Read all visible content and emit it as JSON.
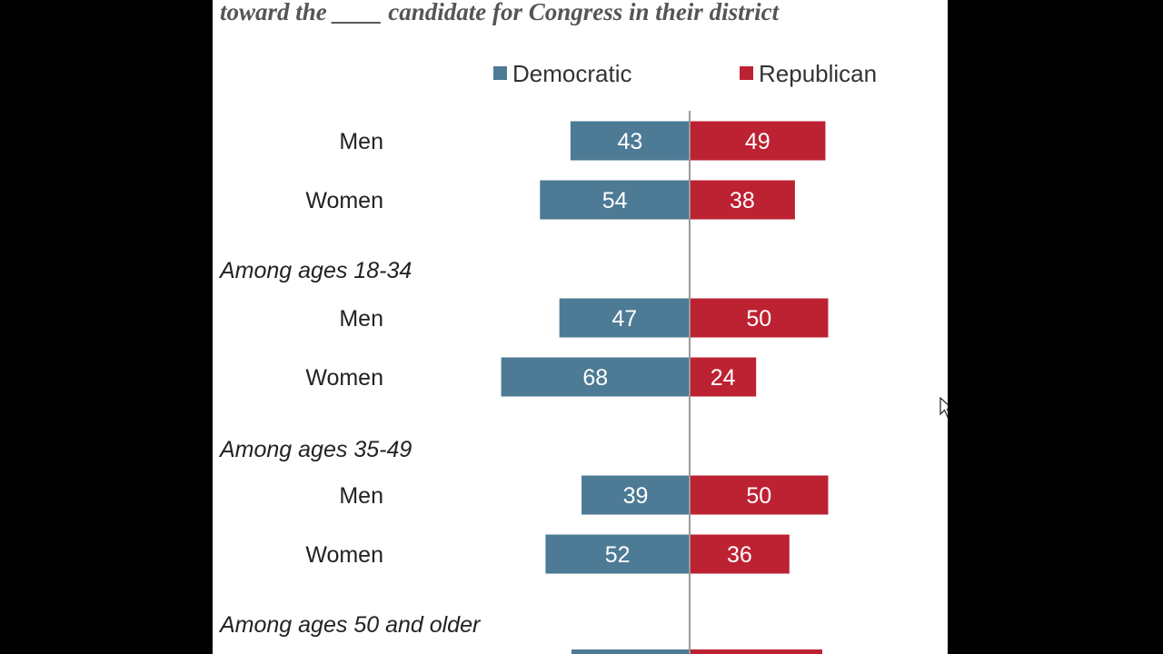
{
  "chart_data": {
    "type": "bar",
    "orientation": "diverging-horizontal",
    "title": "toward the ____ candidate for Congress in their district",
    "legend": [
      {
        "name": "Democratic",
        "color": "#4d7a95"
      },
      {
        "name": "Republican",
        "color": "#bd2232"
      }
    ],
    "groups": [
      {
        "label": "",
        "rows": [
          {
            "label": "Men",
            "dem": 43,
            "rep": 49
          },
          {
            "label": "Women",
            "dem": 54,
            "rep": 38
          }
        ]
      },
      {
        "label": "Among ages 18-34",
        "rows": [
          {
            "label": "Men",
            "dem": 47,
            "rep": 50
          },
          {
            "label": "Women",
            "dem": 68,
            "rep": 24
          }
        ]
      },
      {
        "label": "Among ages 35-49",
        "rows": [
          {
            "label": "Men",
            "dem": 39,
            "rep": 50
          },
          {
            "label": "Women",
            "dem": 52,
            "rep": 36
          }
        ]
      },
      {
        "label": "Among ages 50 and older",
        "rows": []
      }
    ],
    "colors": {
      "dem": "#4d7a95",
      "rep": "#bd2232",
      "axis": "#999999",
      "background": "#ffffff",
      "frame": "#000000"
    }
  }
}
